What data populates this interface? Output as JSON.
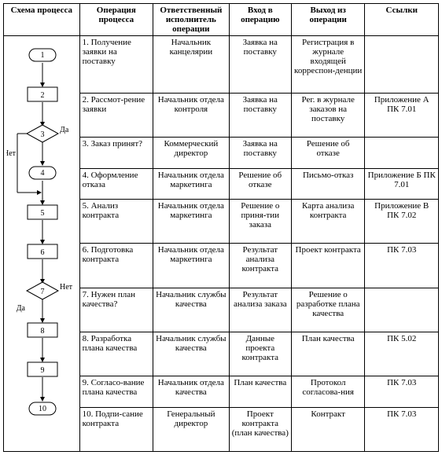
{
  "headers": {
    "c0": "Схема процесса",
    "c1": "Операция процесса",
    "c2": "Ответственный исполнитель операции",
    "c3": "Вход в операцию",
    "c4": "Выход из операции",
    "c5": "Ссылки"
  },
  "rows": [
    {
      "op": "1. Получение заявки на поставку",
      "resp": "Начальник канцелярии",
      "in": "Заявка на поставку",
      "out": "Регистрация в журнале входящей корреспон-денции",
      "ref": ""
    },
    {
      "op": "2. Рассмот-рение заявки",
      "resp": "Начальник отдела контроля",
      "in": "Заявка на поставку",
      "out": "Рег. в журнале заказов на поставку",
      "ref": "Приложение А ПК 7.01"
    },
    {
      "op": "3. Заказ принят?",
      "resp": "Коммерческий директор",
      "in": "Заявка на поставку",
      "out": "Решение об отказе",
      "ref": ""
    },
    {
      "op": "4. Оформление отказа",
      "resp": "Начальник отдела маркетинга",
      "in": "Решение об отказе",
      "out": "Письмо-отказ",
      "ref": "Приложение Б ПК 7.01"
    },
    {
      "op": "5. Анализ контракта",
      "resp": "Начальник отдела маркетинга",
      "in": "Решение о приня-тии заказа",
      "out": "Карта анализа контракта",
      "ref": "Приложение В ПК 7.02"
    },
    {
      "op": "6. Подготовка контракта",
      "resp": "Начальник отдела маркетинга",
      "in": "Результат анализа контракта",
      "out": "Проект контракта",
      "ref": "ПК 7.03"
    },
    {
      "op": "7. Нужен план качества?",
      "resp": "Начальник службы качества",
      "in": "Результат анализа заказа",
      "out": "Решение о разработке плана качества",
      "ref": ""
    },
    {
      "op": "8. Разработка плана качества",
      "resp": "Начальник службы качества",
      "in": "Данные проекта контракта",
      "out": "План качества",
      "ref": "ПК 5.02"
    },
    {
      "op": "9. Согласо-вание плана качества",
      "resp": "Начальник отдела качества",
      "in": "План качества",
      "out": "Протокол согласова-ния",
      "ref": "ПК 7.03"
    },
    {
      "op": "10. Подпи-сание контракта",
      "resp": "Генеральный директор",
      "in": "Проект контракта (план качества)",
      "out": "Контракт",
      "ref": "ПК 7.03"
    }
  ],
  "flow": {
    "labels": {
      "yes": "Да",
      "no": "Нет"
    },
    "nodes": [
      {
        "n": "1",
        "t": "terminal"
      },
      {
        "n": "2",
        "t": "process"
      },
      {
        "n": "3",
        "t": "decision"
      },
      {
        "n": "4",
        "t": "terminal"
      },
      {
        "n": "5",
        "t": "process"
      },
      {
        "n": "6",
        "t": "process"
      },
      {
        "n": "7",
        "t": "decision"
      },
      {
        "n": "8",
        "t": "process"
      },
      {
        "n": "9",
        "t": "process"
      },
      {
        "n": "10",
        "t": "terminal"
      }
    ]
  },
  "style": {
    "stroke": "#000000",
    "bg": "#ffffff",
    "font_size": 11
  }
}
